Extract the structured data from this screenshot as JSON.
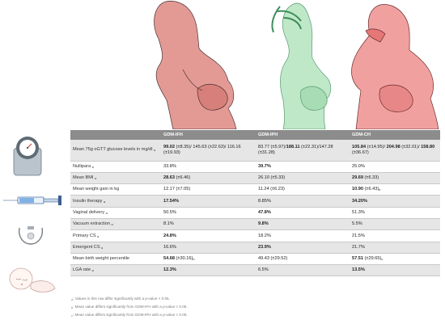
{
  "table": {
    "headers": [
      "",
      "GDM-IFH",
      "GDM-IPH",
      "GDM-CH"
    ],
    "rows": [
      {
        "label": "Mean 75g oGTT glucose levels in mg/dl",
        "label_sub": "a",
        "cells": [
          [
            [
              "99.02",
              true
            ],
            [
              " (±8.35)/ 145.63 (±22.63)/ 116.16 (±19.93)",
              false
            ]
          ],
          [
            [
              "83.77 (±5.97)/",
              false
            ],
            [
              "188.11",
              true
            ],
            [
              " (±22.31)/147.28 (±31.28)",
              false
            ]
          ],
          [
            [
              "105.84",
              true
            ],
            [
              " (±14.95)/ ",
              false
            ],
            [
              "204.98",
              true
            ],
            [
              " (±32.01)/ ",
              false
            ],
            [
              "158.80",
              true
            ],
            [
              " (±36.67)",
              false
            ]
          ]
        ]
      },
      {
        "label": "Nullipara",
        "label_sub": "a",
        "cells": [
          [
            [
              "33.8%",
              false
            ]
          ],
          [
            [
              "39.7%",
              true
            ]
          ],
          [
            [
              "25.0%",
              false
            ]
          ]
        ]
      },
      {
        "label": "Mean BMI",
        "label_sub": "a",
        "cells": [
          [
            [
              "28.63",
              true
            ],
            [
              " (±6.46)",
              false
            ]
          ],
          [
            [
              "26.10 (±5.33)",
              false
            ]
          ],
          [
            [
              "29.69",
              true
            ],
            [
              " (±6.33)",
              false
            ]
          ]
        ]
      },
      {
        "label": "Mean weight gain in kg",
        "label_sub": "",
        "cells": [
          [
            [
              "12.17 (±7.05)",
              false
            ]
          ],
          [
            [
              "11.24 (±6.23)",
              false
            ]
          ],
          [
            [
              "10.90",
              true
            ],
            [
              " (±6.43)",
              false
            ],
            [
              "b",
              false,
              "sub"
            ]
          ]
        ]
      },
      {
        "label": "Insulin therapy",
        "label_sub": "a",
        "cells": [
          [
            [
              "17.54%",
              true
            ]
          ],
          [
            [
              "8.85%",
              false
            ]
          ],
          [
            [
              "34.20%",
              true
            ]
          ]
        ]
      },
      {
        "label": "Vaginal delivery",
        "label_sub": "a",
        "cells": [
          [
            [
              "50.5%",
              false
            ]
          ],
          [
            [
              "47.8%",
              true
            ]
          ],
          [
            [
              "51.3%",
              false
            ]
          ]
        ]
      },
      {
        "label": "Vacuum extraction",
        "label_sub": "a",
        "cells": [
          [
            [
              "8.1%",
              false
            ]
          ],
          [
            [
              "9.8%",
              true
            ]
          ],
          [
            [
              "5.5%",
              false
            ]
          ]
        ]
      },
      {
        "label": "Primary CS",
        "label_sub": "a",
        "cells": [
          [
            [
              "24.8%",
              true
            ]
          ],
          [
            [
              "18.2%",
              false
            ]
          ],
          [
            [
              "21.5%",
              false
            ]
          ]
        ]
      },
      {
        "label": "Emergent CS",
        "label_sub": "a",
        "cells": [
          [
            [
              "16.6%",
              false
            ]
          ],
          [
            [
              "23.9%",
              true
            ]
          ],
          [
            [
              "21.7%",
              false
            ]
          ]
        ]
      },
      {
        "label": "Mean birth weight percentile",
        "label_sub": "",
        "cells": [
          [
            [
              "54.68",
              true
            ],
            [
              " (±30.16)",
              false
            ],
            [
              "b",
              false,
              "sub"
            ]
          ],
          [
            [
              "49.43 (±29.52)",
              false
            ]
          ],
          [
            [
              "57.51",
              true
            ],
            [
              " (±29.65)",
              false
            ],
            [
              "c",
              false,
              "sub"
            ]
          ]
        ]
      },
      {
        "label": "LGA rate",
        "label_sub": "a",
        "cells": [
          [
            [
              "12.3%",
              true
            ]
          ],
          [
            [
              "6.5%",
              false
            ]
          ],
          [
            [
              "13.5%",
              true
            ]
          ]
        ]
      }
    ]
  },
  "footnotes": [
    {
      "sym": "a",
      "text": ": Values in this row differ significantly with a p-value < 0.05."
    },
    {
      "sym": "b",
      "text": ": Mean value differs significantly from GDM-IFH with a p-value < 0.05."
    },
    {
      "sym": "c",
      "text": ": Mean value differs significantly from GDM-IPH with a p-value < 0.05."
    }
  ],
  "colors": {
    "ifh": "#d07874",
    "iph": "#8ed6a6",
    "ch": "#ee8080",
    "header": "#8c8c8c",
    "shade": "#e6e6e6"
  },
  "icons": [
    "scale-icon",
    "syringe-icon",
    "vacuum-cup-icon",
    "baby-icon"
  ]
}
